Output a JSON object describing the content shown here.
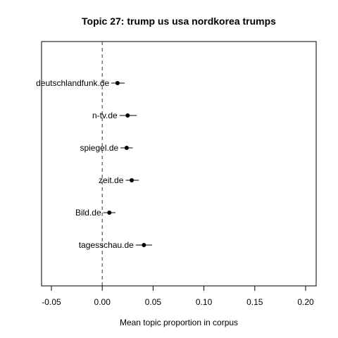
{
  "chart_data": {
    "type": "scatter",
    "title": "Topic 27: trump us usa nordkorea trumps",
    "xlabel": "Mean topic proportion in corpus",
    "ylabel": "",
    "xlim": [
      -0.05,
      0.2
    ],
    "xticks": [
      -0.05,
      0.0,
      0.05,
      0.1,
      0.15,
      0.2
    ],
    "xtick_labels": [
      "-0.05",
      "0.00",
      "0.05",
      "0.10",
      "0.15",
      "0.20"
    ],
    "reference_line": 0.0,
    "grid": false,
    "legend": "none",
    "points": [
      {
        "label": "deutschlandfunk.de",
        "estimate": 0.015,
        "lower": 0.009,
        "upper": 0.022
      },
      {
        "label": "n-tv.de",
        "estimate": 0.025,
        "lower": 0.017,
        "upper": 0.034
      },
      {
        "label": "spiegel.de",
        "estimate": 0.024,
        "lower": 0.018,
        "upper": 0.03
      },
      {
        "label": "zeit.de",
        "estimate": 0.029,
        "lower": 0.023,
        "upper": 0.036
      },
      {
        "label": "Bild.de",
        "estimate": 0.007,
        "lower": 0.001,
        "upper": 0.013
      },
      {
        "label": "tagesschau.de",
        "estimate": 0.041,
        "lower": 0.033,
        "upper": 0.049
      }
    ]
  }
}
